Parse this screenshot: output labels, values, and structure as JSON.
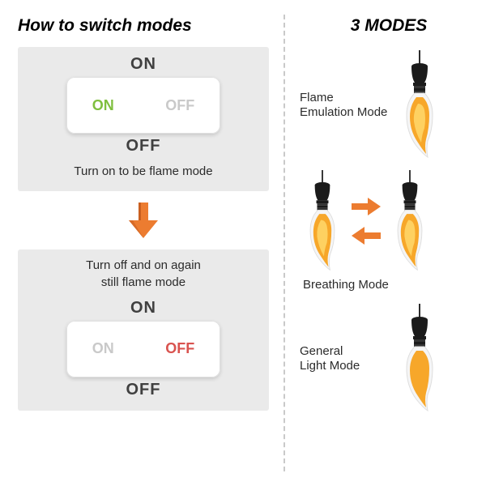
{
  "colors": {
    "panel_bg": "#eaeaea",
    "divider": "#c9c9c9",
    "text_dark": "#2b2b2b",
    "label_gray": "#404040",
    "on_active": "#7fbf3f",
    "off_active": "#d9534f",
    "inactive_text": "#c9c9c9",
    "arrow_orange": "#ec7c30",
    "arrow_shadow": "#c95f1f",
    "flame_outer": "#f7a72a",
    "flame_inner": "#ffd86b",
    "bulb_socket": "#1b1b1b",
    "bulb_wire": "#2c2c2c",
    "bulb_glass": "#f5f5f5",
    "bulb_glass_stroke": "#dedede"
  },
  "fonts": {
    "title_size": 21,
    "panel_label_size": 20,
    "caption_size": 15,
    "mode_label_size": 15,
    "switch_text_size": 18
  },
  "left": {
    "title": "How to switch modes",
    "panel1": {
      "top_label": "ON",
      "on_text": "ON",
      "off_text": "OFF",
      "bottom_label": "OFF",
      "caption": "Turn on to be flame mode",
      "active_side": "on"
    },
    "panel2": {
      "caption": "Turn off and on again\nstill flame mode",
      "top_label": "ON",
      "on_text": "ON",
      "off_text": "OFF",
      "bottom_label": "OFF",
      "active_side": "off"
    }
  },
  "right": {
    "title": "3 MODES",
    "modes": [
      {
        "label": "Flame\nEmulation Mode",
        "bulb_style": "flame"
      },
      {
        "label": "Breathing Mode",
        "bulb_style": "flame_pair"
      },
      {
        "label": "General\nLight Mode",
        "bulb_style": "glow"
      }
    ]
  }
}
